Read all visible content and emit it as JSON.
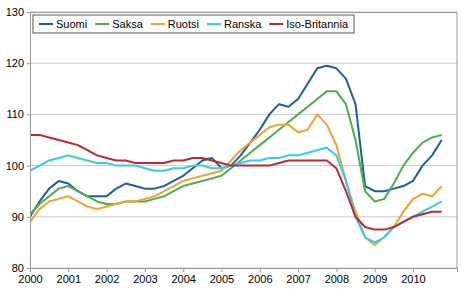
{
  "chart_data": {
    "type": "line",
    "x": [
      2000,
      2000.25,
      2000.5,
      2000.75,
      2001,
      2001.25,
      2001.5,
      2001.75,
      2002,
      2002.25,
      2002.5,
      2002.75,
      2003,
      2003.25,
      2003.5,
      2003.75,
      2004,
      2004.25,
      2004.5,
      2004.75,
      2005,
      2005.25,
      2005.5,
      2005.75,
      2006,
      2006.25,
      2006.5,
      2006.75,
      2007,
      2007.25,
      2007.5,
      2007.75,
      2008,
      2008.25,
      2008.5,
      2008.75,
      2009,
      2009.25,
      2009.5,
      2009.75,
      2010,
      2010.25,
      2010.5,
      2010.75
    ],
    "series": [
      {
        "name": "Suomi",
        "color": "#1f5ca8",
        "values": [
          90,
          93,
          95.5,
          97,
          96.5,
          95,
          94,
          94,
          94,
          95.5,
          96.5,
          96,
          95.5,
          95.5,
          96,
          97,
          98,
          99.5,
          101,
          101.5,
          99.5,
          100,
          102,
          104.5,
          107,
          110,
          112,
          111.5,
          113,
          116,
          119,
          119.5,
          119,
          117,
          112,
          96,
          95,
          95,
          95.5,
          96,
          97,
          100,
          102,
          105
        ]
      },
      {
        "name": "Saksa",
        "color": "#4cae4c",
        "values": [
          90.5,
          92.5,
          94,
          95.5,
          96,
          95,
          94,
          93,
          92.5,
          92.5,
          93,
          93,
          93,
          93.5,
          94,
          95,
          96,
          96.5,
          97,
          97.5,
          98,
          99.5,
          101,
          102.5,
          104,
          105.5,
          107,
          108.5,
          110,
          111.5,
          113,
          114.5,
          114.5,
          112,
          105,
          95,
          93,
          93.5,
          96.5,
          100,
          102.5,
          104.5,
          105.5,
          106
        ]
      },
      {
        "name": "Ruotsi",
        "color": "#f5a030",
        "values": [
          89,
          91.5,
          93,
          93.5,
          94,
          93,
          92,
          91.5,
          92,
          92.5,
          93,
          93,
          93.5,
          94,
          95,
          96,
          97,
          97.5,
          98,
          98.5,
          99,
          101,
          103,
          104.5,
          106,
          107.5,
          108,
          108,
          106.5,
          107,
          110,
          108,
          104,
          97,
          91,
          86,
          84.5,
          86,
          88,
          91,
          93.5,
          94.5,
          94,
          96
        ]
      },
      {
        "name": "Ranska",
        "color": "#33ccee",
        "values": [
          99,
          100,
          101,
          101.5,
          102,
          101.5,
          101,
          100.5,
          100.5,
          100,
          100,
          100,
          99.5,
          99,
          99,
          99.5,
          99.5,
          100,
          100,
          99.5,
          99.5,
          100,
          100.5,
          101,
          101,
          101.5,
          101.5,
          102,
          102,
          102.5,
          103,
          103.5,
          102,
          97,
          90,
          86,
          85,
          86,
          88,
          89,
          90,
          91,
          92,
          93
        ]
      },
      {
        "name": "Iso-Britannia",
        "color": "#c0282e",
        "values": [
          106,
          106,
          105.5,
          105,
          104.5,
          104,
          103,
          102,
          101.5,
          101,
          101,
          100.5,
          100.5,
          100.5,
          100.5,
          101,
          101,
          101.5,
          101.5,
          101,
          100.5,
          100,
          100,
          100,
          100,
          100,
          100.5,
          101,
          101,
          101,
          101,
          101,
          99.5,
          95,
          90,
          88,
          87.5,
          87.5,
          88,
          89,
          90,
          90.5,
          91,
          91
        ]
      }
    ],
    "xlim": [
      2000,
      2011.15
    ],
    "xticks": [
      2000,
      2001,
      2002,
      2003,
      2004,
      2005,
      2006,
      2007,
      2008,
      2009,
      2010
    ],
    "ylim": [
      80,
      130
    ],
    "yticks": [
      80,
      90,
      100,
      110,
      120,
      130
    ],
    "grid": true,
    "legend": "upper left"
  }
}
